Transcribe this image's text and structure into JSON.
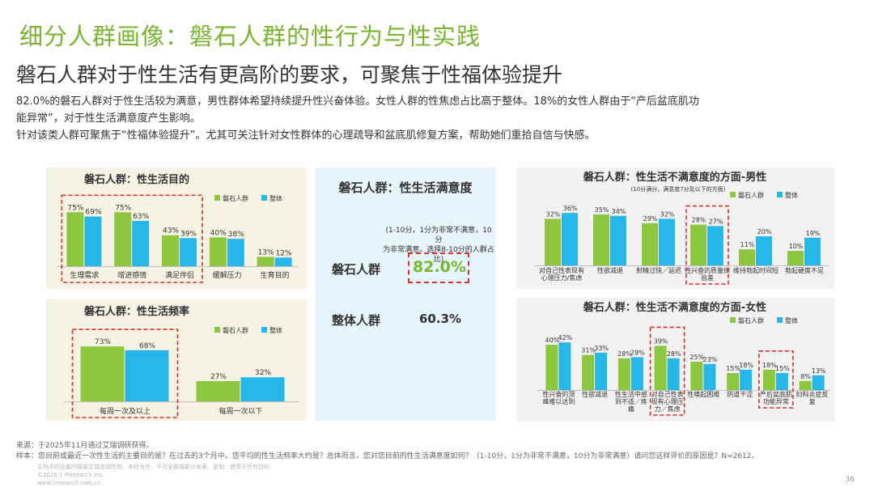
{
  "page": {
    "title": "细分人群画像：磐石人群的性行为与性实践",
    "subtitle": "磐石人群对于性生活有更高阶的要求，可聚焦于性福体验提升",
    "summary_lines": [
      "82.0%的磐石人群对于性生活较为满意，男性群体希望持续提升性兴奋体验。女性人群的性焦虑占比高于整体。18%的女性人群由于“产后盆底肌功",
      "能异常”，对于性生活满意度产生影响。",
      "针对该类人群可聚焦于“性福体验提升”。尤其可关注针对女性群体的心理疏导和盆底肌修复方案，帮助她们重拾自信与快感。"
    ],
    "source": "来源：于2025年11月通过艾瑞调研获得。",
    "sample": "样本：您目前或最近一次性生活的主要目的是？在过去的3个月中，您平均的性生活频率大约是？总体而言，您对您目前的性生活满意度如何？（1-10分，1分为非常不满意，10分为非常满意）请问您这样评价的原因是？N=2612。",
    "copyright_lines": [
      "文档中的全部内容属艾瑞咨询所有，未经允许，不可全部或部分发表、复制、使用于任何目的",
      "©2026.1 iResearch Inc.",
      "www.iresearch.com.cn"
    ],
    "page_number": "36"
  },
  "colors": {
    "green": "#8dc63f",
    "blue": "#25b7e8",
    "title_green": "#7ab52f",
    "red": "#d9302c",
    "text": "#333333"
  },
  "satisfaction": {
    "title": "磐石人群：性生活满意度",
    "note_lines": [
      "(1-10分，1分为非常不满意，10分",
      "为非常满意。选择8-10分的人群占比)"
    ],
    "rows": [
      {
        "label": "磐石人群",
        "value": "82.0%",
        "highlight": true
      },
      {
        "label": "整体人群",
        "value": "60.3%",
        "highlight": false
      }
    ]
  },
  "chart_data": [
    {
      "id": "purpose",
      "type": "bar",
      "title": "磐石人群：性生活目的",
      "legend": [
        "磐石人群",
        "整体"
      ],
      "categories": [
        "生理需求",
        "增进感情",
        "满足伴侣",
        "缓解压力",
        "生育目的"
      ],
      "series": [
        {
          "name": "磐石人群",
          "values": [
            75,
            75,
            43,
            40,
            13
          ]
        },
        {
          "name": "整体",
          "values": [
            69,
            63,
            39,
            38,
            12
          ]
        }
      ],
      "ylim": [
        0,
        100
      ],
      "highlight_categories": [
        0,
        1,
        2
      ]
    },
    {
      "id": "frequency",
      "type": "bar",
      "title": "磐石人群：性生活频率",
      "legend": [
        "磐石人群",
        "整体"
      ],
      "categories": [
        "每周一次及以上",
        "每周一次以下"
      ],
      "series": [
        {
          "name": "磐石人群",
          "values": [
            73,
            27
          ]
        },
        {
          "name": "整体",
          "values": [
            68,
            32
          ]
        }
      ],
      "ylim": [
        0,
        100
      ],
      "highlight_categories": [
        0
      ]
    },
    {
      "id": "male",
      "type": "bar",
      "title": "磐石人群：性生活不满意度的方面-男性",
      "subtitle": "(10分满分，满意度7分及以下的方面)",
      "legend": [
        "磐石人群",
        "整体"
      ],
      "categories": [
        "对自己性表现有心理压力/焦虑",
        "性欲减退",
        "射精过快／延迟",
        "性兴奋的质量体验差",
        "维持勃起时间短",
        "勃起硬度不足"
      ],
      "series": [
        {
          "name": "磐石人群",
          "values": [
            32,
            35,
            29,
            28,
            11,
            10
          ]
        },
        {
          "name": "整体",
          "values": [
            36,
            34,
            32,
            27,
            20,
            19
          ]
        }
      ],
      "ylim": [
        0,
        45
      ],
      "highlight_categories": [
        3
      ]
    },
    {
      "id": "female",
      "type": "bar",
      "title": "磐石人群：性生活不满意度的方面-女性",
      "legend": [
        "磐石人群",
        "整体"
      ],
      "categories": [
        "性兴奋的顶峰难以达到",
        "性欲减退",
        "性生活中感到不适／疼痛",
        "对自己性表现有心理压力／焦虑",
        "性唤起困难",
        "阴道干涩",
        "产后盆底肌功能异常",
        "妇科炎症反复"
      ],
      "series": [
        {
          "name": "磐石人群",
          "values": [
            40,
            31,
            28,
            39,
            25,
            15,
            18,
            8
          ]
        },
        {
          "name": "整体",
          "values": [
            42,
            33,
            29,
            28,
            23,
            18,
            15,
            13
          ]
        }
      ],
      "ylim": [
        0,
        50
      ],
      "highlight_categories": [
        3,
        6
      ]
    }
  ]
}
